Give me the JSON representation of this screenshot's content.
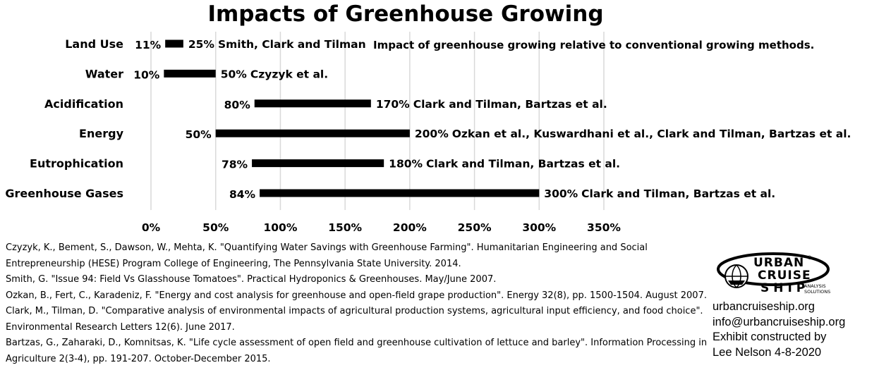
{
  "chart_data": {
    "type": "bar",
    "subtype": "floating-range-horizontal",
    "title": "Impacts of Greenhouse Growing",
    "note": "Impact of greenhouse growing relative to conventional growing methods.",
    "xlim": [
      0,
      350
    ],
    "xticks": [
      0,
      50,
      100,
      150,
      200,
      250,
      300,
      350
    ],
    "xtick_labels": [
      "0%",
      "50%",
      "100%",
      "150%",
      "200%",
      "250%",
      "300%",
      "350%"
    ],
    "grid": "vertical",
    "bar_color": "#000000",
    "categories": [
      {
        "name": "Land Use",
        "low": 11,
        "high": 25,
        "low_label": "11%",
        "high_label": "25%",
        "source": "Smith, Clark and Tilman"
      },
      {
        "name": "Water",
        "low": 10,
        "high": 50,
        "low_label": "10%",
        "high_label": "50%",
        "source": "Czyzyk et al."
      },
      {
        "name": "Acidification",
        "low": 80,
        "high": 170,
        "low_label": "80%",
        "high_label": "170%",
        "source": "Clark and Tilman, Bartzas et al."
      },
      {
        "name": "Energy",
        "low": 50,
        "high": 200,
        "low_label": "50%",
        "high_label": "200%",
        "source": "Ozkan et al., Kuswardhani et al., Clark and Tilman, Bartzas et al."
      },
      {
        "name": "Eutrophication",
        "low": 78,
        "high": 180,
        "low_label": "78%",
        "high_label": "180%",
        "source": "Clark and Tilman, Bartzas et al."
      },
      {
        "name": "Greenhouse Gases",
        "low": 84,
        "high": 300,
        "low_label": "84%",
        "high_label": "300%",
        "source": "Clark and Tilman, Bartzas et al."
      }
    ]
  },
  "references": [
    "Czyzyk, K., Bement, S., Dawson, W., Mehta, K. \"Quantifying Water Savings with Greenhouse Farming\". Humanitarian Engineering and Social Entrepreneurship (HESE) Program College of Engineering, The Pennsylvania State University. 2014.",
    "Smith, G. \"Issue 94: Field Vs Glasshouse Tomatoes\". Practical Hydroponics & Greenhouses. May/June 2007.",
    "Ozkan, B., Fert, C., Karadeniz, F. \"Energy and cost analysis for greenhouse and open-field grape production\". Energy 32(8), pp. 1500-1504. August 2007.",
    "Clark, M., Tilman, D. \"Comparative analysis of environmental impacts of agricultural production systems, agricultural input efficiency, and food choice\". Environmental Research Letters 12(6). June 2017.",
    "Bartzas, G., Zaharaki, D., Komnitsas, K. \"Life cycle assessment of open field and greenhouse cultivation of lettuce and barley\". Information Processing in Agriculture 2(3-4), pp. 191-207. October-December 2015."
  ],
  "logo": {
    "line1": "URBAN",
    "line2": "CRUISE",
    "line3": "SHIP",
    "tagline1": "ANALYSIS",
    "tagline2": "SOLUTIONS",
    "registered": "®",
    "icon": "globe-ship-logo"
  },
  "contact": {
    "website": "urbancruiseship.org",
    "email": "info@urbancruiseship.org",
    "credit_line1": "Exhibit constructed by",
    "credit_line2": "Lee Nelson 4-8-2020"
  }
}
